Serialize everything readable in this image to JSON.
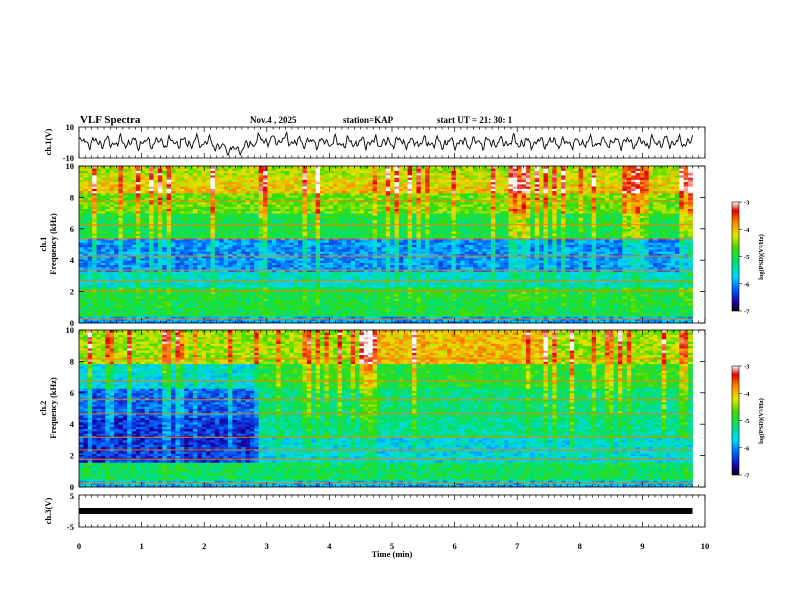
{
  "header": {
    "title": "VLF Spectra",
    "date": "Nov.4 , 2025",
    "station": "station=KAP",
    "start_ut": "start UT =  21: 30: 1"
  },
  "chart_data": [
    {
      "type": "line",
      "name": "ch1-waveform",
      "ylabel": "ch.1(V)",
      "ylim": [
        -10,
        10
      ],
      "yticks": [
        "10",
        "-10"
      ],
      "xlim": [
        0,
        10
      ],
      "data_end_min": 9.8,
      "description": "oscillating signal roughly between -6 and 6 V, dipping near 2-3 min"
    },
    {
      "type": "heatmap",
      "name": "ch1-spectrogram",
      "ylabel_top": "ch.1",
      "ylabel": "Frequency (kHz)",
      "ylim": [
        0,
        10
      ],
      "yticks": [
        "0",
        "2",
        "4",
        "6",
        "8",
        "10"
      ],
      "xlim": [
        0,
        10
      ],
      "data_end_min": 9.8,
      "colorbar": {
        "label": "log(PSD)(V²/Hz)",
        "ticks": [
          "-3",
          "-4",
          "-5",
          "-6",
          "-7"
        ],
        "range": [
          -7,
          -3
        ]
      }
    },
    {
      "type": "heatmap",
      "name": "ch2-spectrogram",
      "ylabel_top": "ch.2",
      "ylabel": "Frequency (kHz)",
      "ylim": [
        0,
        10
      ],
      "yticks": [
        "0",
        "2",
        "4",
        "6",
        "8",
        "10"
      ],
      "xlim": [
        0,
        10
      ],
      "data_end_min": 9.8,
      "colorbar": {
        "label": "log(PSD)(V²/Hz)",
        "ticks": [
          "-3",
          "-4",
          "-5",
          "-6",
          "-7"
        ],
        "range": [
          -7,
          -3
        ]
      }
    },
    {
      "type": "line",
      "name": "ch3-waveform",
      "ylabel": "ch.3(V)",
      "ylim": [
        -5,
        5
      ],
      "yticks": [
        "5",
        "-5"
      ],
      "xlim": [
        0,
        10
      ],
      "xlabel": "Time (min)",
      "xticks": [
        "0",
        "1",
        "2",
        "3",
        "4",
        "5",
        "6",
        "7",
        "8",
        "9",
        "10"
      ],
      "constant_value": 0,
      "data_end_min": 9.8
    }
  ]
}
